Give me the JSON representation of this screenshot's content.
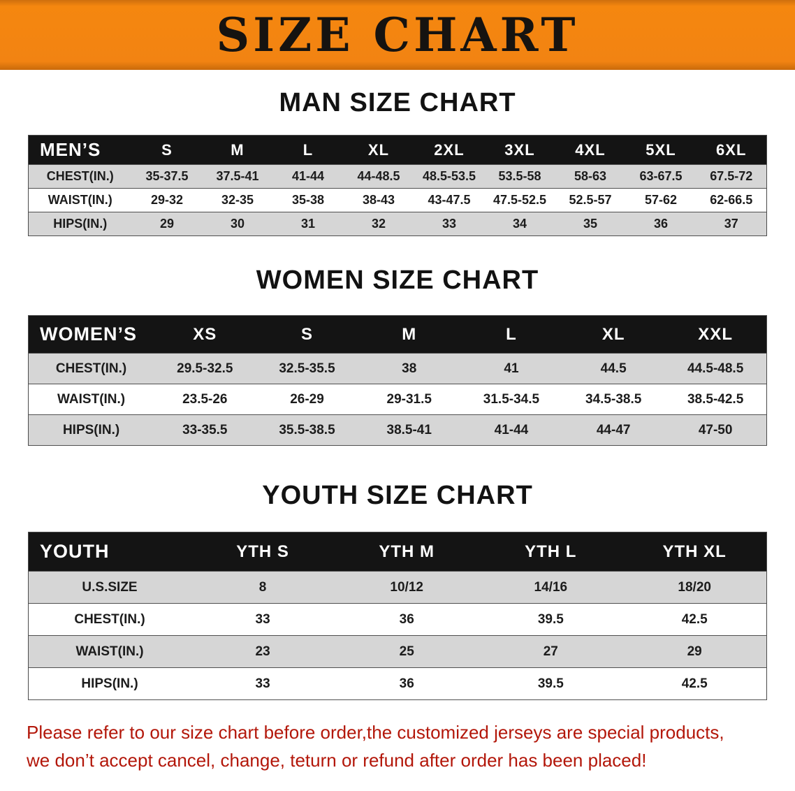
{
  "banner": {
    "title": "SIZE CHART",
    "bg_color": "#f28312",
    "text_color": "#161310"
  },
  "sections": {
    "men": {
      "heading": "MAN SIZE CHART"
    },
    "women": {
      "heading": "WOMEN SIZE CHART"
    },
    "youth": {
      "heading": "YOUTH SIZE CHART"
    }
  },
  "men_table": {
    "header": [
      "MEN’S",
      "S",
      "M",
      "L",
      "XL",
      "2XL",
      "3XL",
      "4XL",
      "5XL",
      "6XL"
    ],
    "rows": [
      [
        "CHEST(IN.)",
        "35-37.5",
        "37.5-41",
        "41-44",
        "44-48.5",
        "48.5-53.5",
        "53.5-58",
        "58-63",
        "63-67.5",
        "67.5-72"
      ],
      [
        "WAIST(IN.)",
        "29-32",
        "32-35",
        "35-38",
        "38-43",
        "43-47.5",
        "47.5-52.5",
        "52.5-57",
        "57-62",
        "62-66.5"
      ],
      [
        "HIPS(IN.)",
        "29",
        "30",
        "31",
        "32",
        "33",
        "34",
        "35",
        "36",
        "37"
      ]
    ]
  },
  "women_table": {
    "header": [
      "WOMEN’S",
      "XS",
      "S",
      "M",
      "L",
      "XL",
      "XXL"
    ],
    "rows": [
      [
        "CHEST(IN.)",
        "29.5-32.5",
        "32.5-35.5",
        "38",
        "41",
        "44.5",
        "44.5-48.5"
      ],
      [
        "WAIST(IN.)",
        "23.5-26",
        "26-29",
        "29-31.5",
        "31.5-34.5",
        "34.5-38.5",
        "38.5-42.5"
      ],
      [
        "HIPS(IN.)",
        "33-35.5",
        "35.5-38.5",
        "38.5-41",
        "41-44",
        "44-47",
        "47-50"
      ]
    ]
  },
  "youth_table": {
    "header": [
      "YOUTH",
      "YTH S",
      "YTH M",
      "YTH L",
      "YTH XL"
    ],
    "rows": [
      [
        "U.S.SIZE",
        "8",
        "10/12",
        "14/16",
        "18/20"
      ],
      [
        "CHEST(IN.)",
        "33",
        "36",
        "39.5",
        "42.5"
      ],
      [
        "WAIST(IN.)",
        "23",
        "25",
        "27",
        "29"
      ],
      [
        "HIPS(IN.)",
        "33",
        "36",
        "39.5",
        "42.5"
      ]
    ]
  },
  "disclaimer": {
    "line1": "Please refer to our size chart before order,the customized jerseys are special products,",
    "line2": "we don’t accept cancel, change, teturn or refund after order has been placed!",
    "color": "#b3170a"
  },
  "style_tokens": {
    "stripe_row_color": "#d6d6d6",
    "table_header_bg": "#141414",
    "table_header_text": "#ffffff"
  }
}
